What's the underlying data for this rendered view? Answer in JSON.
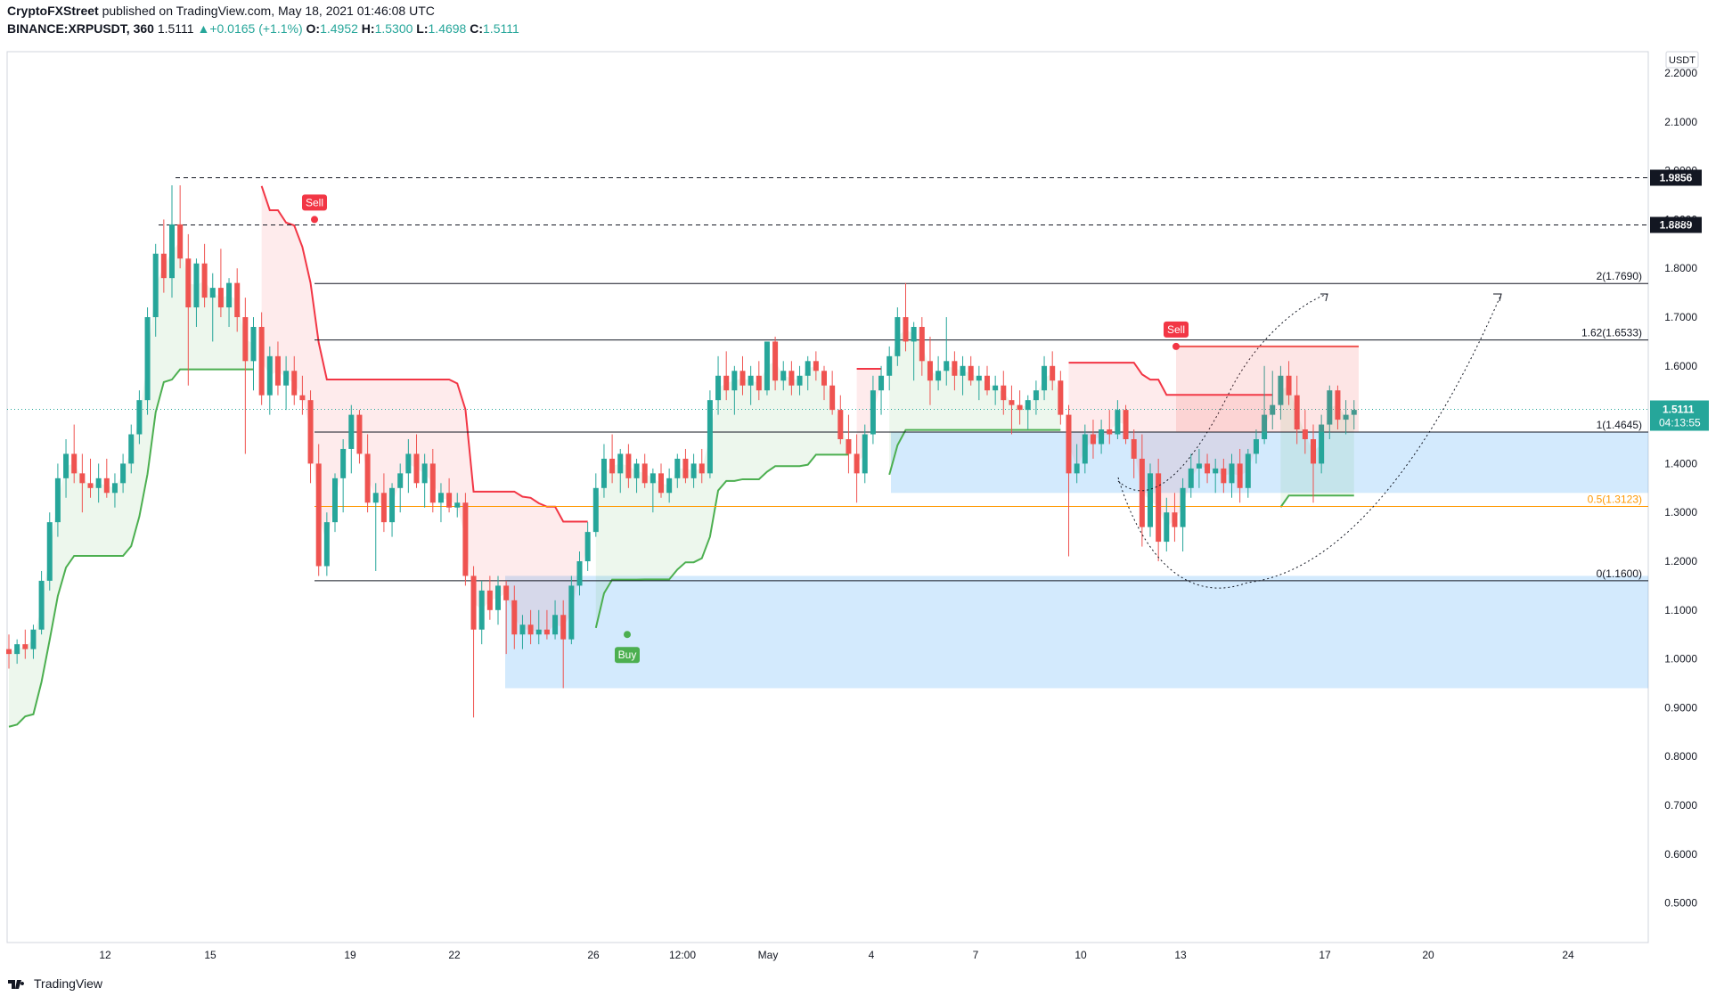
{
  "header": {
    "publisher": "CryptoFXStreet",
    "published_text": "published on TradingView.com, May 18, 2021 01:46:08 UTC",
    "symbol": "BINANCE:XRPUSDT, 360",
    "last": "1.5111",
    "change_arrow": "▲",
    "change": "+0.0165 (+1.1%)",
    "o_label": "O:",
    "o_value": "1.4952",
    "h_label": "H:",
    "h_value": "1.5300",
    "l_label": "L:",
    "l_value": "1.4698",
    "c_label": "C:",
    "c_value": "1.5111"
  },
  "footer": {
    "brand": "TradingView"
  },
  "colors": {
    "up": "#26a69a",
    "down": "#ef5350",
    "supertrend_up": "#4caf50",
    "supertrend_down": "#f23645",
    "fib_zone": "#2196f3",
    "fib_half": "#ff9800"
  },
  "chart_data": {
    "type": "candlestick",
    "currency": "USDT",
    "x_ticks": [
      "12",
      "15",
      "19",
      "22",
      "26",
      "12:00",
      "May",
      "4",
      "7",
      "10",
      "13",
      "17",
      "20",
      "24"
    ],
    "y_ticks": [
      "2.2000",
      "2.1000",
      "2.0000",
      "1.9000",
      "1.8000",
      "1.7000",
      "1.6000",
      "1.5000",
      "1.4000",
      "1.3000",
      "1.2000",
      "1.1000",
      "1.0000",
      "0.9000",
      "0.8000",
      "0.7000",
      "0.6000",
      "0.5000"
    ],
    "y_range": [
      0.45,
      2.25
    ],
    "last_price": {
      "value": 1.5111,
      "label": "1.5111",
      "countdown": "04:13:55"
    },
    "horizontal_levels": [
      {
        "value": 1.9856,
        "label": "1.9856",
        "style": "dashed"
      },
      {
        "value": 1.8889,
        "label": "1.8889",
        "style": "dashed"
      }
    ],
    "fib_levels": [
      {
        "ratio": "2",
        "value": 1.769,
        "label": "2(1.7690)"
      },
      {
        "ratio": "1.62",
        "value": 1.6533,
        "label": "1.62(1.6533)"
      },
      {
        "ratio": "1",
        "value": 1.4645,
        "label": "1(1.4645)"
      },
      {
        "ratio": "0.5",
        "value": 1.3123,
        "label": "0.5(1.3123)"
      },
      {
        "ratio": "0",
        "value": 1.16,
        "label": "0(1.1600)"
      }
    ],
    "demand_zones": [
      {
        "top": 1.465,
        "bottom": 1.34
      },
      {
        "top": 1.17,
        "bottom": 0.94
      }
    ],
    "signals": [
      {
        "type": "Sell",
        "label": "Sell",
        "price": 1.9
      },
      {
        "type": "Buy",
        "label": "Buy",
        "price": 1.05
      },
      {
        "type": "Sell",
        "label": "Sell",
        "price": 1.64
      }
    ],
    "candles": [
      {
        "o": 1.02,
        "h": 1.05,
        "l": 0.98,
        "c": 1.01
      },
      {
        "o": 1.01,
        "h": 1.04,
        "l": 0.99,
        "c": 1.03
      },
      {
        "o": 1.03,
        "h": 1.06,
        "l": 1.0,
        "c": 1.02
      },
      {
        "o": 1.02,
        "h": 1.07,
        "l": 1.0,
        "c": 1.06
      },
      {
        "o": 1.06,
        "h": 1.18,
        "l": 1.05,
        "c": 1.16
      },
      {
        "o": 1.16,
        "h": 1.3,
        "l": 1.14,
        "c": 1.28
      },
      {
        "o": 1.28,
        "h": 1.4,
        "l": 1.25,
        "c": 1.37
      },
      {
        "o": 1.37,
        "h": 1.45,
        "l": 1.33,
        "c": 1.42
      },
      {
        "o": 1.42,
        "h": 1.48,
        "l": 1.36,
        "c": 1.38
      },
      {
        "o": 1.38,
        "h": 1.42,
        "l": 1.3,
        "c": 1.36
      },
      {
        "o": 1.36,
        "h": 1.41,
        "l": 1.33,
        "c": 1.35
      },
      {
        "o": 1.35,
        "h": 1.4,
        "l": 1.32,
        "c": 1.37
      },
      {
        "o": 1.37,
        "h": 1.41,
        "l": 1.33,
        "c": 1.34
      },
      {
        "o": 1.34,
        "h": 1.38,
        "l": 1.31,
        "c": 1.36
      },
      {
        "o": 1.36,
        "h": 1.42,
        "l": 1.34,
        "c": 1.4
      },
      {
        "o": 1.4,
        "h": 1.48,
        "l": 1.38,
        "c": 1.46
      },
      {
        "o": 1.46,
        "h": 1.55,
        "l": 1.44,
        "c": 1.53
      },
      {
        "o": 1.53,
        "h": 1.72,
        "l": 1.5,
        "c": 1.7
      },
      {
        "o": 1.7,
        "h": 1.85,
        "l": 1.66,
        "c": 1.83
      },
      {
        "o": 1.83,
        "h": 1.9,
        "l": 1.75,
        "c": 1.78
      },
      {
        "o": 1.78,
        "h": 1.97,
        "l": 1.74,
        "c": 1.89
      },
      {
        "o": 1.89,
        "h": 1.97,
        "l": 1.8,
        "c": 1.82
      },
      {
        "o": 1.82,
        "h": 1.87,
        "l": 1.56,
        "c": 1.72
      },
      {
        "o": 1.72,
        "h": 1.82,
        "l": 1.68,
        "c": 1.81
      },
      {
        "o": 1.81,
        "h": 1.85,
        "l": 1.72,
        "c": 1.74
      },
      {
        "o": 1.74,
        "h": 1.79,
        "l": 1.65,
        "c": 1.76
      },
      {
        "o": 1.76,
        "h": 1.84,
        "l": 1.7,
        "c": 1.72
      },
      {
        "o": 1.72,
        "h": 1.78,
        "l": 1.68,
        "c": 1.77
      },
      {
        "o": 1.77,
        "h": 1.8,
        "l": 1.67,
        "c": 1.7
      },
      {
        "o": 1.7,
        "h": 1.74,
        "l": 1.42,
        "c": 1.61
      },
      {
        "o": 1.61,
        "h": 1.7,
        "l": 1.55,
        "c": 1.68
      },
      {
        "o": 1.68,
        "h": 1.71,
        "l": 1.52,
        "c": 1.54
      },
      {
        "o": 1.54,
        "h": 1.64,
        "l": 1.5,
        "c": 1.62
      },
      {
        "o": 1.62,
        "h": 1.65,
        "l": 1.54,
        "c": 1.56
      },
      {
        "o": 1.56,
        "h": 1.62,
        "l": 1.51,
        "c": 1.59
      },
      {
        "o": 1.59,
        "h": 1.62,
        "l": 1.52,
        "c": 1.54
      },
      {
        "o": 1.54,
        "h": 1.58,
        "l": 1.5,
        "c": 1.53
      },
      {
        "o": 1.53,
        "h": 1.55,
        "l": 1.36,
        "c": 1.4
      },
      {
        "o": 1.4,
        "h": 1.44,
        "l": 1.17,
        "c": 1.19
      },
      {
        "o": 1.19,
        "h": 1.3,
        "l": 1.17,
        "c": 1.28
      },
      {
        "o": 1.28,
        "h": 1.38,
        "l": 1.26,
        "c": 1.37
      },
      {
        "o": 1.37,
        "h": 1.45,
        "l": 1.3,
        "c": 1.43
      },
      {
        "o": 1.43,
        "h": 1.52,
        "l": 1.38,
        "c": 1.5
      },
      {
        "o": 1.5,
        "h": 1.51,
        "l": 1.4,
        "c": 1.42
      },
      {
        "o": 1.42,
        "h": 1.46,
        "l": 1.3,
        "c": 1.32
      },
      {
        "o": 1.32,
        "h": 1.36,
        "l": 1.18,
        "c": 1.34
      },
      {
        "o": 1.34,
        "h": 1.38,
        "l": 1.26,
        "c": 1.28
      },
      {
        "o": 1.28,
        "h": 1.36,
        "l": 1.25,
        "c": 1.35
      },
      {
        "o": 1.35,
        "h": 1.4,
        "l": 1.3,
        "c": 1.38
      },
      {
        "o": 1.38,
        "h": 1.45,
        "l": 1.34,
        "c": 1.42
      },
      {
        "o": 1.42,
        "h": 1.46,
        "l": 1.35,
        "c": 1.36
      },
      {
        "o": 1.36,
        "h": 1.42,
        "l": 1.31,
        "c": 1.4
      },
      {
        "o": 1.4,
        "h": 1.43,
        "l": 1.3,
        "c": 1.32
      },
      {
        "o": 1.32,
        "h": 1.36,
        "l": 1.28,
        "c": 1.34
      },
      {
        "o": 1.34,
        "h": 1.37,
        "l": 1.3,
        "c": 1.31
      },
      {
        "o": 1.31,
        "h": 1.34,
        "l": 1.29,
        "c": 1.32
      },
      {
        "o": 1.32,
        "h": 1.34,
        "l": 1.15,
        "c": 1.17
      },
      {
        "o": 1.17,
        "h": 1.19,
        "l": 0.88,
        "c": 1.06
      },
      {
        "o": 1.06,
        "h": 1.16,
        "l": 1.03,
        "c": 1.14
      },
      {
        "o": 1.14,
        "h": 1.17,
        "l": 1.08,
        "c": 1.1
      },
      {
        "o": 1.1,
        "h": 1.17,
        "l": 1.07,
        "c": 1.15
      },
      {
        "o": 1.15,
        "h": 1.16,
        "l": 1.01,
        "c": 1.12
      },
      {
        "o": 1.12,
        "h": 1.15,
        "l": 1.02,
        "c": 1.05
      },
      {
        "o": 1.05,
        "h": 1.09,
        "l": 1.02,
        "c": 1.07
      },
      {
        "o": 1.07,
        "h": 1.1,
        "l": 1.03,
        "c": 1.05
      },
      {
        "o": 1.05,
        "h": 1.1,
        "l": 1.03,
        "c": 1.06
      },
      {
        "o": 1.06,
        "h": 1.1,
        "l": 1.04,
        "c": 1.05
      },
      {
        "o": 1.05,
        "h": 1.12,
        "l": 1.04,
        "c": 1.09
      },
      {
        "o": 1.09,
        "h": 1.12,
        "l": 0.94,
        "c": 1.04
      },
      {
        "o": 1.04,
        "h": 1.17,
        "l": 1.03,
        "c": 1.15
      },
      {
        "o": 1.15,
        "h": 1.22,
        "l": 1.13,
        "c": 1.2
      },
      {
        "o": 1.2,
        "h": 1.28,
        "l": 1.18,
        "c": 1.26
      },
      {
        "o": 1.26,
        "h": 1.38,
        "l": 1.25,
        "c": 1.35
      },
      {
        "o": 1.35,
        "h": 1.44,
        "l": 1.33,
        "c": 1.41
      },
      {
        "o": 1.41,
        "h": 1.46,
        "l": 1.36,
        "c": 1.38
      },
      {
        "o": 1.38,
        "h": 1.43,
        "l": 1.34,
        "c": 1.42
      },
      {
        "o": 1.42,
        "h": 1.44,
        "l": 1.35,
        "c": 1.37
      },
      {
        "o": 1.37,
        "h": 1.41,
        "l": 1.34,
        "c": 1.4
      },
      {
        "o": 1.4,
        "h": 1.42,
        "l": 1.35,
        "c": 1.36
      },
      {
        "o": 1.36,
        "h": 1.39,
        "l": 1.3,
        "c": 1.38
      },
      {
        "o": 1.38,
        "h": 1.4,
        "l": 1.33,
        "c": 1.34
      },
      {
        "o": 1.34,
        "h": 1.39,
        "l": 1.32,
        "c": 1.37
      },
      {
        "o": 1.37,
        "h": 1.42,
        "l": 1.35,
        "c": 1.41
      },
      {
        "o": 1.41,
        "h": 1.43,
        "l": 1.36,
        "c": 1.37
      },
      {
        "o": 1.37,
        "h": 1.42,
        "l": 1.35,
        "c": 1.4
      },
      {
        "o": 1.4,
        "h": 1.43,
        "l": 1.36,
        "c": 1.38
      },
      {
        "o": 1.38,
        "h": 1.55,
        "l": 1.37,
        "c": 1.53
      },
      {
        "o": 1.53,
        "h": 1.62,
        "l": 1.5,
        "c": 1.58
      },
      {
        "o": 1.58,
        "h": 1.63,
        "l": 1.53,
        "c": 1.55
      },
      {
        "o": 1.55,
        "h": 1.6,
        "l": 1.5,
        "c": 1.59
      },
      {
        "o": 1.59,
        "h": 1.62,
        "l": 1.54,
        "c": 1.56
      },
      {
        "o": 1.56,
        "h": 1.6,
        "l": 1.52,
        "c": 1.58
      },
      {
        "o": 1.58,
        "h": 1.61,
        "l": 1.53,
        "c": 1.55
      },
      {
        "o": 1.55,
        "h": 1.64,
        "l": 1.54,
        "c": 1.65
      },
      {
        "o": 1.65,
        "h": 1.66,
        "l": 1.55,
        "c": 1.57
      },
      {
        "o": 1.57,
        "h": 1.61,
        "l": 1.55,
        "c": 1.59
      },
      {
        "o": 1.59,
        "h": 1.61,
        "l": 1.54,
        "c": 1.56
      },
      {
        "o": 1.56,
        "h": 1.6,
        "l": 1.54,
        "c": 1.58
      },
      {
        "o": 1.58,
        "h": 1.62,
        "l": 1.55,
        "c": 1.61
      },
      {
        "o": 1.61,
        "h": 1.63,
        "l": 1.57,
        "c": 1.59
      },
      {
        "o": 1.59,
        "h": 1.6,
        "l": 1.53,
        "c": 1.56
      },
      {
        "o": 1.56,
        "h": 1.59,
        "l": 1.5,
        "c": 1.51
      },
      {
        "o": 1.51,
        "h": 1.54,
        "l": 1.44,
        "c": 1.45
      },
      {
        "o": 1.45,
        "h": 1.5,
        "l": 1.38,
        "c": 1.42
      },
      {
        "o": 1.42,
        "h": 1.46,
        "l": 1.32,
        "c": 1.38
      },
      {
        "o": 1.38,
        "h": 1.48,
        "l": 1.36,
        "c": 1.46
      },
      {
        "o": 1.46,
        "h": 1.58,
        "l": 1.44,
        "c": 1.55
      },
      {
        "o": 1.55,
        "h": 1.6,
        "l": 1.5,
        "c": 1.58
      },
      {
        "o": 1.58,
        "h": 1.64,
        "l": 1.55,
        "c": 1.62
      },
      {
        "o": 1.62,
        "h": 1.72,
        "l": 1.6,
        "c": 1.7
      },
      {
        "o": 1.7,
        "h": 1.77,
        "l": 1.63,
        "c": 1.65
      },
      {
        "o": 1.65,
        "h": 1.69,
        "l": 1.57,
        "c": 1.68
      },
      {
        "o": 1.68,
        "h": 1.7,
        "l": 1.58,
        "c": 1.61
      },
      {
        "o": 1.61,
        "h": 1.66,
        "l": 1.52,
        "c": 1.57
      },
      {
        "o": 1.57,
        "h": 1.62,
        "l": 1.55,
        "c": 1.59
      },
      {
        "o": 1.59,
        "h": 1.7,
        "l": 1.56,
        "c": 1.61
      },
      {
        "o": 1.61,
        "h": 1.63,
        "l": 1.55,
        "c": 1.58
      },
      {
        "o": 1.58,
        "h": 1.62,
        "l": 1.54,
        "c": 1.6
      },
      {
        "o": 1.6,
        "h": 1.62,
        "l": 1.56,
        "c": 1.57
      },
      {
        "o": 1.57,
        "h": 1.6,
        "l": 1.53,
        "c": 1.58
      },
      {
        "o": 1.58,
        "h": 1.6,
        "l": 1.54,
        "c": 1.55
      },
      {
        "o": 1.55,
        "h": 1.58,
        "l": 1.52,
        "c": 1.56
      },
      {
        "o": 1.56,
        "h": 1.59,
        "l": 1.5,
        "c": 1.53
      },
      {
        "o": 1.53,
        "h": 1.56,
        "l": 1.46,
        "c": 1.52
      },
      {
        "o": 1.52,
        "h": 1.55,
        "l": 1.48,
        "c": 1.51
      },
      {
        "o": 1.51,
        "h": 1.54,
        "l": 1.47,
        "c": 1.53
      },
      {
        "o": 1.53,
        "h": 1.57,
        "l": 1.5,
        "c": 1.55
      },
      {
        "o": 1.55,
        "h": 1.62,
        "l": 1.53,
        "c": 1.6
      },
      {
        "o": 1.6,
        "h": 1.63,
        "l": 1.55,
        "c": 1.57
      },
      {
        "o": 1.57,
        "h": 1.59,
        "l": 1.48,
        "c": 1.5
      },
      {
        "o": 1.5,
        "h": 1.52,
        "l": 1.21,
        "c": 1.38
      },
      {
        "o": 1.38,
        "h": 1.44,
        "l": 1.36,
        "c": 1.4
      },
      {
        "o": 1.4,
        "h": 1.48,
        "l": 1.38,
        "c": 1.46
      },
      {
        "o": 1.46,
        "h": 1.49,
        "l": 1.41,
        "c": 1.44
      },
      {
        "o": 1.44,
        "h": 1.49,
        "l": 1.42,
        "c": 1.47
      },
      {
        "o": 1.47,
        "h": 1.51,
        "l": 1.44,
        "c": 1.46
      },
      {
        "o": 1.46,
        "h": 1.53,
        "l": 1.45,
        "c": 1.51
      },
      {
        "o": 1.51,
        "h": 1.52,
        "l": 1.44,
        "c": 1.45
      },
      {
        "o": 1.45,
        "h": 1.47,
        "l": 1.37,
        "c": 1.41
      },
      {
        "o": 1.41,
        "h": 1.46,
        "l": 1.23,
        "c": 1.27
      },
      {
        "o": 1.27,
        "h": 1.4,
        "l": 1.25,
        "c": 1.38
      },
      {
        "o": 1.38,
        "h": 1.41,
        "l": 1.2,
        "c": 1.24
      },
      {
        "o": 1.24,
        "h": 1.33,
        "l": 1.22,
        "c": 1.3
      },
      {
        "o": 1.3,
        "h": 1.34,
        "l": 1.24,
        "c": 1.27
      },
      {
        "o": 1.27,
        "h": 1.37,
        "l": 1.22,
        "c": 1.35
      },
      {
        "o": 1.35,
        "h": 1.42,
        "l": 1.33,
        "c": 1.39
      },
      {
        "o": 1.39,
        "h": 1.43,
        "l": 1.35,
        "c": 1.4
      },
      {
        "o": 1.4,
        "h": 1.42,
        "l": 1.36,
        "c": 1.38
      },
      {
        "o": 1.38,
        "h": 1.41,
        "l": 1.34,
        "c": 1.39
      },
      {
        "o": 1.39,
        "h": 1.41,
        "l": 1.34,
        "c": 1.36
      },
      {
        "o": 1.36,
        "h": 1.42,
        "l": 1.33,
        "c": 1.4
      },
      {
        "o": 1.4,
        "h": 1.43,
        "l": 1.32,
        "c": 1.35
      },
      {
        "o": 1.35,
        "h": 1.43,
        "l": 1.33,
        "c": 1.42
      },
      {
        "o": 1.42,
        "h": 1.47,
        "l": 1.4,
        "c": 1.45
      },
      {
        "o": 1.45,
        "h": 1.6,
        "l": 1.44,
        "c": 1.5
      },
      {
        "o": 1.5,
        "h": 1.59,
        "l": 1.47,
        "c": 1.52
      },
      {
        "o": 1.52,
        "h": 1.6,
        "l": 1.49,
        "c": 1.58
      },
      {
        "o": 1.58,
        "h": 1.61,
        "l": 1.52,
        "c": 1.54
      },
      {
        "o": 1.54,
        "h": 1.58,
        "l": 1.44,
        "c": 1.47
      },
      {
        "o": 1.47,
        "h": 1.51,
        "l": 1.42,
        "c": 1.45
      },
      {
        "o": 1.45,
        "h": 1.48,
        "l": 1.32,
        "c": 1.4
      },
      {
        "o": 1.4,
        "h": 1.5,
        "l": 1.38,
        "c": 1.48
      },
      {
        "o": 1.48,
        "h": 1.56,
        "l": 1.45,
        "c": 1.55
      },
      {
        "o": 1.55,
        "h": 1.56,
        "l": 1.47,
        "c": 1.49
      },
      {
        "o": 1.49,
        "h": 1.53,
        "l": 1.46,
        "c": 1.5
      },
      {
        "o": 1.5,
        "h": 1.53,
        "l": 1.47,
        "c": 1.51
      }
    ],
    "annotations": [
      "Sell",
      "Buy",
      "Sell",
      "2(1.7690)",
      "1.62(1.6533)",
      "1(1.4645)",
      "0.5(1.3123)",
      "0(1.1600)"
    ]
  }
}
